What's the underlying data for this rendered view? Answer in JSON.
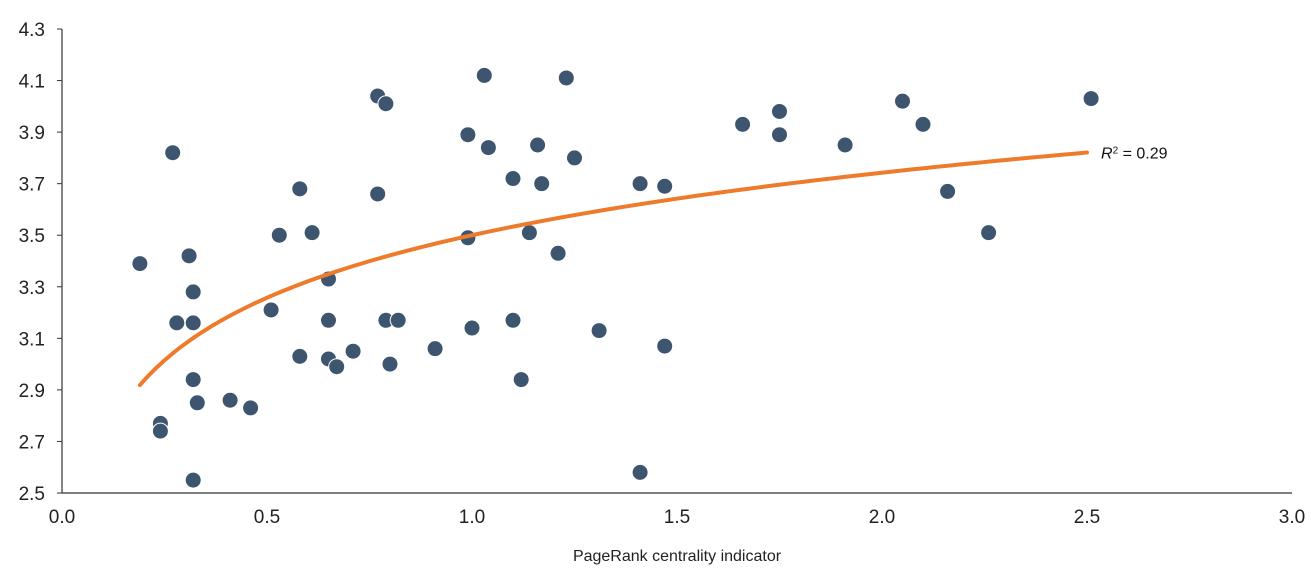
{
  "chart_data": {
    "type": "scatter",
    "title": "",
    "xlabel": "PageRank centrality indicator",
    "ylabel": "",
    "xlim": [
      0.0,
      3.0
    ],
    "ylim": [
      2.5,
      4.3
    ],
    "x_ticks": [
      "0.0",
      "0.5",
      "1.0",
      "1.5",
      "2.0",
      "2.5",
      "3.0"
    ],
    "y_ticks": [
      "2.5",
      "2.7",
      "2.9",
      "3.1",
      "3.3",
      "3.5",
      "3.7",
      "3.9",
      "4.1",
      "4.3"
    ],
    "grid": false,
    "legend": "none",
    "colors": {
      "points": "#3e5570",
      "trendline": "#ee7b2c",
      "axis": "#333333"
    },
    "points": [
      {
        "x": 0.19,
        "y": 3.39
      },
      {
        "x": 0.24,
        "y": 2.77
      },
      {
        "x": 0.24,
        "y": 2.74
      },
      {
        "x": 0.27,
        "y": 3.82
      },
      {
        "x": 0.28,
        "y": 3.16
      },
      {
        "x": 0.31,
        "y": 3.42
      },
      {
        "x": 0.32,
        "y": 3.16
      },
      {
        "x": 0.32,
        "y": 3.28
      },
      {
        "x": 0.32,
        "y": 2.94
      },
      {
        "x": 0.33,
        "y": 2.85
      },
      {
        "x": 0.32,
        "y": 2.55
      },
      {
        "x": 0.41,
        "y": 2.86
      },
      {
        "x": 0.46,
        "y": 2.83
      },
      {
        "x": 0.51,
        "y": 3.21
      },
      {
        "x": 0.53,
        "y": 3.5
      },
      {
        "x": 0.58,
        "y": 3.68
      },
      {
        "x": 0.58,
        "y": 3.03
      },
      {
        "x": 0.61,
        "y": 3.51
      },
      {
        "x": 0.65,
        "y": 3.17
      },
      {
        "x": 0.65,
        "y": 3.33
      },
      {
        "x": 0.65,
        "y": 3.02
      },
      {
        "x": 0.67,
        "y": 2.99
      },
      {
        "x": 0.71,
        "y": 3.05
      },
      {
        "x": 0.77,
        "y": 4.04
      },
      {
        "x": 0.77,
        "y": 3.66
      },
      {
        "x": 0.79,
        "y": 4.01
      },
      {
        "x": 0.79,
        "y": 3.17
      },
      {
        "x": 0.8,
        "y": 3.0
      },
      {
        "x": 0.82,
        "y": 3.17
      },
      {
        "x": 0.91,
        "y": 3.06
      },
      {
        "x": 0.99,
        "y": 3.89
      },
      {
        "x": 0.99,
        "y": 3.49
      },
      {
        "x": 1.0,
        "y": 3.14
      },
      {
        "x": 1.03,
        "y": 4.12
      },
      {
        "x": 1.04,
        "y": 3.84
      },
      {
        "x": 1.1,
        "y": 3.72
      },
      {
        "x": 1.1,
        "y": 3.17
      },
      {
        "x": 1.12,
        "y": 2.94
      },
      {
        "x": 1.14,
        "y": 3.51
      },
      {
        "x": 1.16,
        "y": 3.85
      },
      {
        "x": 1.17,
        "y": 3.7
      },
      {
        "x": 1.21,
        "y": 3.43
      },
      {
        "x": 1.23,
        "y": 4.11
      },
      {
        "x": 1.25,
        "y": 3.8
      },
      {
        "x": 1.31,
        "y": 3.13
      },
      {
        "x": 1.41,
        "y": 3.7
      },
      {
        "x": 1.41,
        "y": 2.58
      },
      {
        "x": 1.47,
        "y": 3.69
      },
      {
        "x": 1.47,
        "y": 3.07
      },
      {
        "x": 1.66,
        "y": 3.93
      },
      {
        "x": 1.75,
        "y": 3.98
      },
      {
        "x": 1.75,
        "y": 3.89
      },
      {
        "x": 1.91,
        "y": 3.85
      },
      {
        "x": 2.05,
        "y": 4.02
      },
      {
        "x": 2.1,
        "y": 3.93
      },
      {
        "x": 2.16,
        "y": 3.67
      },
      {
        "x": 2.26,
        "y": 3.51
      },
      {
        "x": 2.51,
        "y": 4.03
      }
    ],
    "trendline": {
      "type": "logarithmic",
      "intercept": 3.5,
      "slope": 0.35,
      "x_start": 0.19,
      "x_end": 2.5,
      "label_prefix": "R",
      "label_sup": "2",
      "label_suffix": " = 0.29"
    }
  }
}
